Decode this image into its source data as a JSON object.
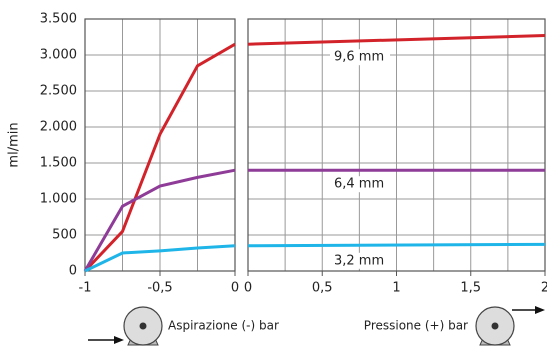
{
  "chart_data": [
    {
      "type": "line",
      "ylabel": "ml/min",
      "x": [
        -1,
        -0.75,
        -0.5,
        -0.25,
        0
      ],
      "xlim": [
        -1,
        0
      ],
      "xticks": [
        -1,
        {
          "value": -0.5,
          "label": "-0,5"
        },
        0
      ],
      "xgrid": [
        -0.75,
        -0.5,
        -0.25
      ],
      "ylim": [
        0,
        3500
      ],
      "yticks": [
        0,
        500,
        {
          "value": 1000,
          "label": "1.000"
        },
        {
          "value": 1500,
          "label": "1.500"
        },
        {
          "value": 2000,
          "label": "2.000"
        },
        {
          "value": 2500,
          "label": "2.500"
        },
        {
          "value": 3000,
          "label": "3.000"
        },
        {
          "value": 3500,
          "label": "3.500"
        }
      ],
      "grid": true,
      "series": [
        {
          "color": "#d2232a",
          "values": [
            0,
            550,
            1900,
            2850,
            3150
          ]
        },
        {
          "color": "#8e3c97",
          "values": [
            0,
            900,
            1180,
            1300,
            1400
          ]
        },
        {
          "color": "#1fb5e8",
          "values": [
            0,
            250,
            280,
            320,
            350
          ]
        }
      ]
    },
    {
      "type": "line",
      "x": [
        0,
        2
      ],
      "xlim": [
        0,
        2
      ],
      "xticks": [
        0,
        {
          "value": 0.5,
          "label": "0,5"
        },
        1,
        {
          "value": 1.5,
          "label": "1,5"
        },
        2
      ],
      "xgrid": [
        0.25,
        0.5,
        0.75,
        1,
        1.25,
        1.5,
        1.75
      ],
      "grid": true,
      "series": [
        {
          "name": "9,6 mm",
          "color": "#d2232a",
          "values": [
            3150,
            3270
          ]
        },
        {
          "name": "6,4 mm",
          "color": "#8e3c97",
          "values": [
            1400,
            1400
          ]
        },
        {
          "name": "3,2 mm",
          "color": "#1fb5e8",
          "values": [
            350,
            370
          ]
        }
      ]
    }
  ],
  "footer": {
    "suction": "Aspirazione (-) bar",
    "pressure": "Pressione (+) bar"
  }
}
